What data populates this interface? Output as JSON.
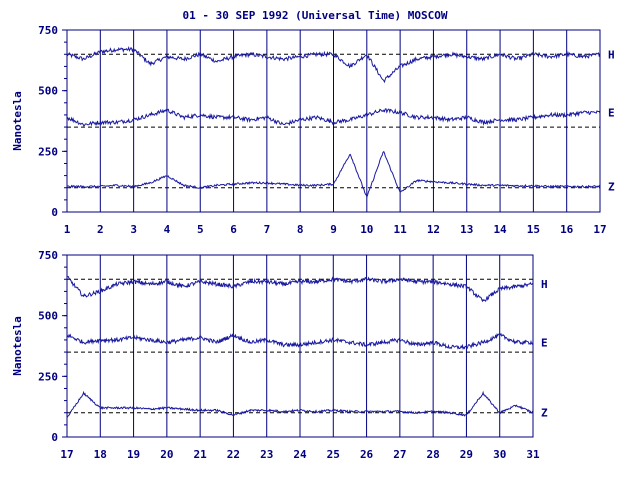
{
  "chart_data": [
    {
      "type": "line",
      "title": "01 - 30 SEP 1992 (Universal Time) MOSCOW",
      "ylabel": "Nanotesla",
      "xlabel": "",
      "ylim": [
        0,
        750
      ],
      "yticks": [
        "0",
        "250",
        "500",
        "750"
      ],
      "x_ticks": [
        "1",
        "2",
        "3",
        "4",
        "5",
        "6",
        "7",
        "8",
        "9",
        "10",
        "11",
        "12",
        "13",
        "14",
        "15",
        "16",
        "17"
      ],
      "xlim": [
        1,
        17
      ],
      "grid": "vertical",
      "baselines": [
        {
          "component": "H",
          "value": 650
        },
        {
          "component": "E",
          "value": 350
        },
        {
          "component": "Z",
          "value": 100
        }
      ],
      "series": [
        {
          "name": "H",
          "x": [
            1,
            1.5,
            2,
            2.5,
            3,
            3.5,
            4,
            4.5,
            5,
            5.5,
            6,
            6.5,
            7,
            7.5,
            8,
            8.5,
            9,
            9.5,
            10,
            10.5,
            11,
            11.5,
            12,
            12.5,
            13,
            13.5,
            14,
            14.5,
            15,
            15.5,
            16,
            16.5,
            17
          ],
          "values": [
            650,
            630,
            660,
            670,
            670,
            610,
            640,
            630,
            650,
            620,
            640,
            650,
            640,
            630,
            640,
            650,
            650,
            600,
            650,
            540,
            600,
            630,
            640,
            650,
            640,
            630,
            650,
            630,
            650,
            640,
            650,
            640,
            650
          ]
        },
        {
          "name": "E",
          "x": [
            1,
            1.5,
            2,
            2.5,
            3,
            3.5,
            4,
            4.5,
            5,
            5.5,
            6,
            6.5,
            7,
            7.5,
            8,
            8.5,
            9,
            9.5,
            10,
            10.5,
            11,
            11.5,
            12,
            12.5,
            13,
            13.5,
            14,
            14.5,
            15,
            15.5,
            16,
            16.5,
            17
          ],
          "values": [
            390,
            360,
            370,
            370,
            380,
            400,
            420,
            390,
            400,
            390,
            390,
            380,
            390,
            360,
            380,
            390,
            370,
            380,
            400,
            420,
            410,
            390,
            390,
            380,
            390,
            370,
            380,
            380,
            390,
            400,
            400,
            410,
            410
          ]
        },
        {
          "name": "Z",
          "x": [
            1,
            1.5,
            2,
            2.5,
            3,
            3.5,
            4,
            4.5,
            5,
            5.5,
            6,
            6.5,
            7,
            7.5,
            8,
            8.5,
            9,
            9.5,
            10,
            10.5,
            11,
            11.5,
            12,
            12.5,
            13,
            13.5,
            14,
            14.5,
            15,
            15.5,
            16,
            16.5,
            17
          ],
          "values": [
            105,
            105,
            105,
            110,
            105,
            120,
            150,
            110,
            100,
            110,
            115,
            120,
            120,
            115,
            110,
            110,
            115,
            240,
            60,
            250,
            80,
            130,
            125,
            120,
            115,
            110,
            110,
            108,
            108,
            105,
            105,
            105,
            105
          ]
        }
      ],
      "series_labels": [
        "H",
        "E",
        "Z"
      ]
    },
    {
      "type": "line",
      "title": "",
      "ylabel": "Nanotesla",
      "xlabel": "",
      "ylim": [
        0,
        750
      ],
      "yticks": [
        "0",
        "250",
        "500",
        "750"
      ],
      "x_ticks": [
        "17",
        "18",
        "19",
        "20",
        "21",
        "22",
        "23",
        "24",
        "25",
        "26",
        "27",
        "28",
        "29",
        "30",
        "31"
      ],
      "xlim": [
        17,
        31
      ],
      "grid": "vertical",
      "baselines": [
        {
          "component": "H",
          "value": 650
        },
        {
          "component": "E",
          "value": 350
        },
        {
          "component": "Z",
          "value": 100
        }
      ],
      "series": [
        {
          "name": "H",
          "x": [
            17,
            17.5,
            18,
            18.5,
            19,
            19.5,
            20,
            20.5,
            21,
            21.5,
            22,
            22.5,
            23,
            23.5,
            24,
            24.5,
            25,
            25.5,
            26,
            26.5,
            27,
            27.5,
            28,
            28.5,
            29,
            29.5,
            30,
            30.5,
            31
          ],
          "values": [
            660,
            580,
            600,
            630,
            640,
            630,
            640,
            620,
            640,
            630,
            620,
            640,
            640,
            630,
            640,
            640,
            650,
            640,
            650,
            640,
            650,
            640,
            640,
            630,
            620,
            560,
            610,
            620,
            630
          ]
        },
        {
          "name": "E",
          "x": [
            17,
            17.5,
            18,
            18.5,
            19,
            19.5,
            20,
            20.5,
            21,
            21.5,
            22,
            22.5,
            23,
            23.5,
            24,
            24.5,
            25,
            25.5,
            26,
            26.5,
            27,
            27.5,
            28,
            28.5,
            29,
            29.5,
            30,
            30.5,
            31
          ],
          "values": [
            420,
            390,
            400,
            400,
            410,
            400,
            390,
            400,
            410,
            390,
            420,
            390,
            400,
            380,
            380,
            390,
            400,
            390,
            380,
            390,
            400,
            380,
            390,
            370,
            370,
            390,
            420,
            390,
            390
          ]
        },
        {
          "name": "Z",
          "x": [
            17,
            17.5,
            18,
            18.5,
            19,
            19.5,
            20,
            20.5,
            21,
            21.5,
            22,
            22.5,
            23,
            23.5,
            24,
            24.5,
            25,
            25.5,
            26,
            26.5,
            27,
            27.5,
            28,
            28.5,
            29,
            29.5,
            30,
            30.5,
            31
          ],
          "values": [
            80,
            180,
            120,
            120,
            120,
            115,
            120,
            115,
            110,
            110,
            90,
            110,
            110,
            105,
            110,
            105,
            110,
            105,
            105,
            105,
            105,
            100,
            105,
            100,
            90,
            180,
            100,
            130,
            100
          ]
        }
      ],
      "series_labels": [
        "H",
        "E",
        "Z"
      ]
    }
  ]
}
